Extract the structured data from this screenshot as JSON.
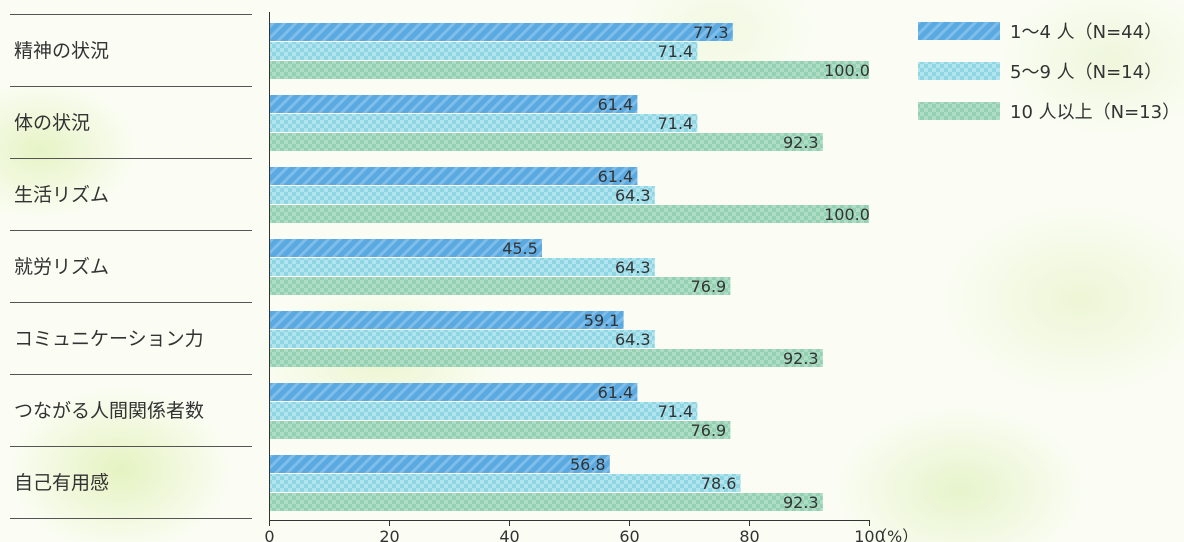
{
  "chart_data": {
    "type": "bar",
    "orientation": "horizontal",
    "categories": [
      "精神の状況",
      "体の状況",
      "生活リズム",
      "就労リズム",
      "コミュニケーション力",
      "つながる人間関係者数",
      "自己有用感"
    ],
    "series": [
      {
        "name": "1～4 人（N=44）",
        "color": "#5aa9e0",
        "values": [
          77.3,
          61.4,
          61.4,
          45.5,
          59.1,
          61.4,
          56.8
        ]
      },
      {
        "name": "5～9 人（N=14）",
        "color": "#8fd6e4",
        "values": [
          71.4,
          71.4,
          64.3,
          64.3,
          64.3,
          71.4,
          78.6
        ]
      },
      {
        "name": "10 人以上（N=13）",
        "color": "#93d1b2",
        "values": [
          100.0,
          92.3,
          100.0,
          76.9,
          92.3,
          76.9,
          92.3
        ]
      }
    ],
    "value_labels": [
      [
        "77.3",
        "61.4",
        "61.4",
        "45.5",
        "59.1",
        "61.4",
        "56.8"
      ],
      [
        "71.4",
        "71.4",
        "64.3",
        "64.3",
        "64.3",
        "71.4",
        "78.6"
      ],
      [
        "100.0",
        "92.3",
        "100.0",
        "76.9",
        "92.3",
        "76.9",
        "92.3"
      ]
    ],
    "x_ticks": [
      "0",
      "20",
      "40",
      "60",
      "80",
      "100"
    ],
    "x_unit": "（%）",
    "xlim": [
      0,
      100
    ],
    "grid": false,
    "legend_position": "top-right"
  }
}
